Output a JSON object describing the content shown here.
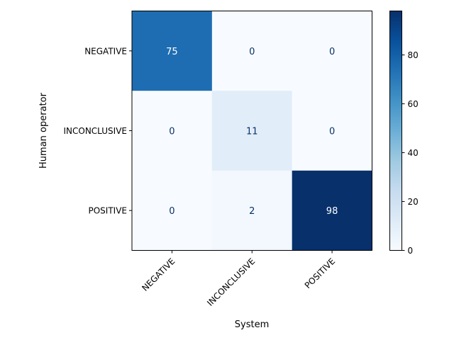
{
  "chart_data": {
    "type": "heatmap",
    "xlabel": "System",
    "ylabel": "Human operator",
    "x_categories": [
      "NEGATIVE",
      "INCONCLUSIVE",
      "POSITIVE"
    ],
    "y_categories": [
      "NEGATIVE",
      "INCONCLUSIVE",
      "POSITIVE"
    ],
    "values": [
      [
        75,
        0,
        0
      ],
      [
        0,
        11,
        0
      ],
      [
        0,
        2,
        98
      ]
    ],
    "colorbar": {
      "colormap": "Blues",
      "range": [
        0,
        98
      ],
      "ticks": [
        0,
        20,
        40,
        60,
        80
      ]
    },
    "grid": false
  }
}
